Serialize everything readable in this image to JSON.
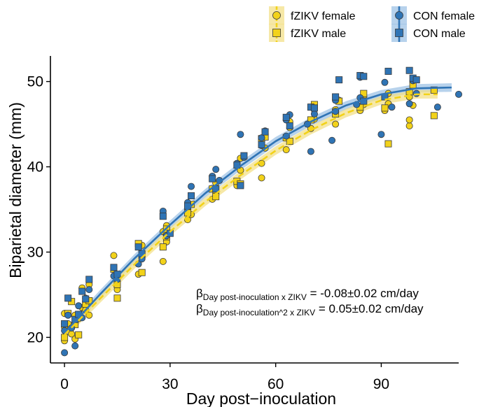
{
  "chart_data": {
    "type": "scatter",
    "xlabel": "Day post−inoculation",
    "ylabel": "Biparietal diameter (mm)",
    "xticks": [
      0,
      30,
      60,
      90
    ],
    "yticks": [
      20,
      30,
      40,
      50
    ],
    "xlim": [
      -4,
      112
    ],
    "ylim": [
      17,
      53
    ],
    "grid": false,
    "legend_position": "top-right",
    "colors": {
      "fzikv": "#f2d21a",
      "fzikv_band": "#f3e08a",
      "con": "#2f74b5",
      "con_band": "#9fc3e6"
    },
    "legend": [
      {
        "label": "fZIKV female",
        "group": "fzikv",
        "shape": "circle"
      },
      {
        "label": "fZIKV male",
        "group": "fzikv",
        "shape": "square"
      },
      {
        "label": "CON female",
        "group": "con",
        "shape": "circle"
      },
      {
        "label": "CON male",
        "group": "con",
        "shape": "square"
      }
    ],
    "annotations": [
      {
        "symbol": "β",
        "subscript": "Day post-inoculation x ZIKV",
        "text": " = -0.08±0.02 cm/day"
      },
      {
        "symbol": "β",
        "subscript": "Day post-inoculation^2 x ZIKV",
        "text": " = 0.05±0.02 cm/day"
      }
    ],
    "fits": [
      {
        "group": "con",
        "style": "solid",
        "x": [
          0,
          10,
          20,
          30,
          40,
          50,
          60,
          70,
          80,
          90,
          100,
          110
        ],
        "y": [
          20.5,
          25.0,
          29.3,
          33.2,
          36.9,
          40.1,
          43.0,
          45.3,
          47.2,
          48.5,
          49.2,
          49.3
        ],
        "band": 0.5
      },
      {
        "group": "fzikv",
        "style": "dashed",
        "x": [
          0,
          10,
          20,
          30,
          40,
          50,
          60,
          70,
          80,
          90,
          100,
          106
        ],
        "y": [
          20.3,
          24.5,
          28.6,
          32.4,
          35.9,
          39.0,
          41.9,
          44.3,
          46.3,
          47.8,
          48.5,
          48.5
        ],
        "band": 0.5
      }
    ],
    "series": [
      {
        "name": "fZIKV female",
        "group": "fzikv",
        "shape": "circle",
        "points": [
          [
            0,
            21.2
          ],
          [
            0,
            19.6
          ],
          [
            0,
            22.8
          ],
          [
            1,
            21.6
          ],
          [
            2,
            20.4
          ],
          [
            3,
            22.6
          ],
          [
            3,
            19.8
          ],
          [
            4,
            22.2
          ],
          [
            5,
            25.8
          ],
          [
            5,
            23.5
          ],
          [
            6,
            23.2
          ],
          [
            7,
            26.2
          ],
          [
            7,
            22.6
          ],
          [
            14,
            29.6
          ],
          [
            15,
            27.2
          ],
          [
            15,
            25.6
          ],
          [
            21,
            27.4
          ],
          [
            22,
            29.4
          ],
          [
            22,
            30.8
          ],
          [
            28,
            28.9
          ],
          [
            28,
            32.4
          ],
          [
            29,
            31.2
          ],
          [
            29,
            33.1
          ],
          [
            35,
            33.8
          ],
          [
            35,
            35.6
          ],
          [
            36,
            34.4
          ],
          [
            42,
            36.2
          ],
          [
            43,
            38.1
          ],
          [
            43,
            37.0
          ],
          [
            49,
            37.8
          ],
          [
            50,
            39.6
          ],
          [
            50,
            41.0
          ],
          [
            56,
            38.7
          ],
          [
            56,
            40.4
          ],
          [
            57,
            42.2
          ],
          [
            63,
            42.0
          ],
          [
            64,
            44.6
          ],
          [
            64,
            45.3
          ],
          [
            70,
            44.5
          ],
          [
            71,
            45.6
          ],
          [
            71,
            46.8
          ],
          [
            77,
            45.0
          ],
          [
            77,
            46.7
          ],
          [
            78,
            47.8
          ],
          [
            84,
            46.6
          ],
          [
            85,
            48.2
          ],
          [
            85,
            47.3
          ],
          [
            91,
            46.6
          ],
          [
            92,
            47.4
          ],
          [
            92,
            48.6
          ],
          [
            98,
            44.8
          ],
          [
            98,
            45.5
          ],
          [
            99,
            47.2
          ],
          [
            98,
            48.2
          ]
        ]
      },
      {
        "name": "fZIKV male",
        "group": "fzikv",
        "shape": "square",
        "points": [
          [
            0,
            20.0
          ],
          [
            1,
            22.8
          ],
          [
            2,
            24.2
          ],
          [
            3,
            21.5
          ],
          [
            4,
            20.3
          ],
          [
            6,
            23.9
          ],
          [
            7,
            24.3
          ],
          [
            14,
            28.0
          ],
          [
            15,
            26.2
          ],
          [
            15,
            24.6
          ],
          [
            21,
            31.0
          ],
          [
            22,
            27.6
          ],
          [
            28,
            30.6
          ],
          [
            29,
            31.8
          ],
          [
            29,
            32.7
          ],
          [
            35,
            34.6
          ],
          [
            36,
            35.6
          ],
          [
            42,
            37.4
          ],
          [
            43,
            36.5
          ],
          [
            49,
            38.3
          ],
          [
            50,
            38.0
          ],
          [
            56,
            43.3
          ],
          [
            57,
            43.5
          ],
          [
            63,
            43.4
          ],
          [
            64,
            43.0
          ],
          [
            70,
            45.5
          ],
          [
            71,
            47.3
          ],
          [
            77,
            46.2
          ],
          [
            78,
            47.7
          ],
          [
            84,
            47.0
          ],
          [
            85,
            48.6
          ],
          [
            91,
            46.9
          ],
          [
            92,
            42.7
          ],
          [
            98,
            48.8
          ],
          [
            99,
            49.6
          ],
          [
            105,
            49.0
          ],
          [
            105,
            46.0
          ]
        ]
      },
      {
        "name": "CON female",
        "group": "con",
        "shape": "circle",
        "points": [
          [
            0,
            18.2
          ],
          [
            0,
            20.8
          ],
          [
            0,
            21.6
          ],
          [
            1,
            22.6
          ],
          [
            2,
            21.1
          ],
          [
            3,
            19.0
          ],
          [
            4,
            23.7
          ],
          [
            5,
            22.3
          ],
          [
            6,
            24.6
          ],
          [
            7,
            25.6
          ],
          [
            14,
            27.2
          ],
          [
            15,
            26.8
          ],
          [
            21,
            28.6
          ],
          [
            22,
            29.2
          ],
          [
            28,
            34.8
          ],
          [
            29,
            31.9
          ],
          [
            35,
            35.8
          ],
          [
            36,
            37.7
          ],
          [
            42,
            38.9
          ],
          [
            43,
            39.7
          ],
          [
            44,
            38.4
          ],
          [
            49,
            40.4
          ],
          [
            50,
            43.8
          ],
          [
            51,
            41.1
          ],
          [
            56,
            43.4
          ],
          [
            57,
            44.2
          ],
          [
            56,
            42.5
          ],
          [
            63,
            43.6
          ],
          [
            64,
            46.1
          ],
          [
            63,
            45.5
          ],
          [
            69,
            45.0
          ],
          [
            70,
            41.8
          ],
          [
            71,
            46.2
          ],
          [
            76,
            43.1
          ],
          [
            77,
            46.5
          ],
          [
            77,
            47.8
          ],
          [
            83,
            47.3
          ],
          [
            84,
            50.5
          ],
          [
            84,
            48.1
          ],
          [
            90,
            43.8
          ],
          [
            91,
            49.9
          ],
          [
            93,
            47.0
          ],
          [
            98,
            47.4
          ],
          [
            99,
            50.1
          ],
          [
            100,
            48.6
          ],
          [
            106,
            47.0
          ],
          [
            112,
            48.5
          ]
        ]
      },
      {
        "name": "CON male",
        "group": "con",
        "shape": "square",
        "points": [
          [
            0,
            21.6
          ],
          [
            1,
            24.6
          ],
          [
            3,
            22.1
          ],
          [
            4,
            22.7
          ],
          [
            5,
            25.4
          ],
          [
            6,
            24.5
          ],
          [
            7,
            26.8
          ],
          [
            14,
            28.2
          ],
          [
            15,
            27.4
          ],
          [
            21,
            30.6
          ],
          [
            22,
            29.8
          ],
          [
            28,
            34.2
          ],
          [
            30,
            32.2
          ],
          [
            35,
            35.4
          ],
          [
            36,
            36.6
          ],
          [
            42,
            38.6
          ],
          [
            43,
            37.4
          ],
          [
            49,
            40.2
          ],
          [
            50,
            37.8
          ],
          [
            51,
            41.3
          ],
          [
            56,
            42.6
          ],
          [
            57,
            44.1
          ],
          [
            63,
            45.8
          ],
          [
            64,
            44.8
          ],
          [
            70,
            47.0
          ],
          [
            71,
            46.9
          ],
          [
            77,
            48.2
          ],
          [
            78,
            50.2
          ],
          [
            84,
            50.7
          ],
          [
            85,
            47.7
          ],
          [
            85,
            50.6
          ],
          [
            91,
            48.2
          ],
          [
            92,
            51.2
          ],
          [
            98,
            51.3
          ],
          [
            99,
            50.4
          ],
          [
            100,
            50.2
          ]
        ]
      }
    ]
  }
}
